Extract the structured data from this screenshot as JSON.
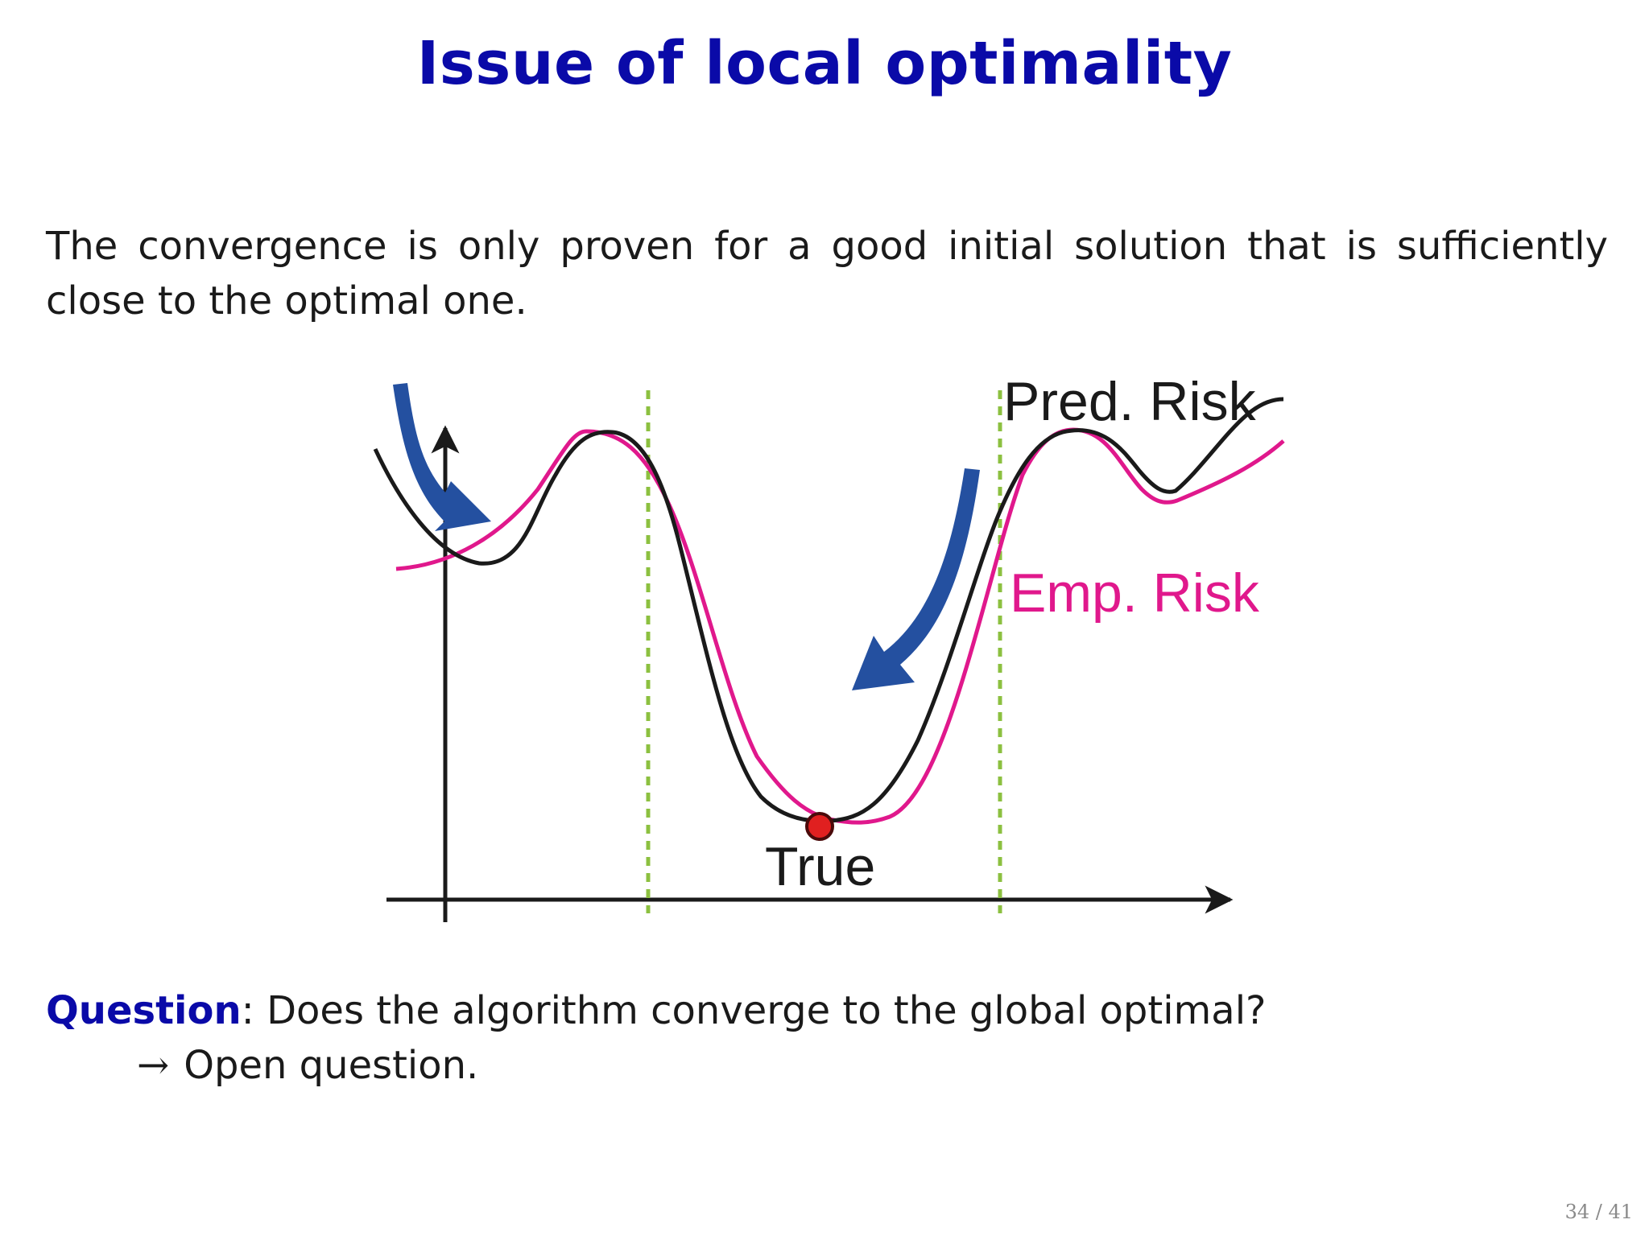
{
  "title": "Issue of local optimality",
  "intro": "The convergence is only proven for a good initial solution that is sufficiently close to the optimal one.",
  "figure": {
    "labels": {
      "pred_risk": "Pred. Risk",
      "emp_risk": "Emp. Risk",
      "true": "True"
    },
    "colors": {
      "pred_risk": "#1a1a1a",
      "emp_risk": "#e0188c",
      "arrows": "#2450a0",
      "boundaries": "#8cc040",
      "optimum_point": "#e02020"
    }
  },
  "question": {
    "label": "Question",
    "text": ": Does the algorithm converge to the global optimal?"
  },
  "answer": {
    "arrow": "→",
    "text": "Open question."
  },
  "page_number": "34 / 41"
}
